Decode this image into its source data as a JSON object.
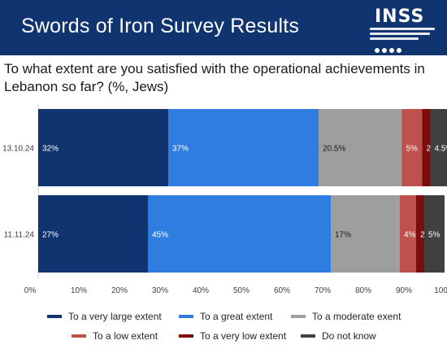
{
  "header": {
    "title": "Swords of Iron Survey Results",
    "logo_text": "INSS"
  },
  "question": "To what extent are you satisfied with the operational achievements in Lebanon so far? (%, Jews)",
  "chart_data": {
    "type": "bar",
    "orientation": "horizontal",
    "stacked": true,
    "categories": [
      "13.10.24",
      "11.11.24"
    ],
    "series": [
      {
        "name": "To a very large extent",
        "color": "#0f3470",
        "values": [
          32,
          27
        ],
        "labels": [
          "32%",
          "27%"
        ]
      },
      {
        "name": "To a great extent",
        "color": "#2f7de1",
        "values": [
          37,
          45
        ],
        "labels": [
          "37%",
          "45%"
        ]
      },
      {
        "name": "To a moderate exent",
        "color": "#9e9e9e",
        "values": [
          20.5,
          17
        ],
        "labels": [
          "20.5%",
          "17%"
        ]
      },
      {
        "name": "To a low extent",
        "color": "#c0504d",
        "values": [
          5,
          4
        ],
        "labels": [
          "5%",
          "4%"
        ]
      },
      {
        "name": "To a very low extent",
        "color": "#7b0d0d",
        "values": [
          2,
          2
        ],
        "labels": [
          "2%",
          "2%"
        ]
      },
      {
        "name": "Do not know",
        "color": "#404040",
        "values": [
          4.5,
          5
        ],
        "labels": [
          "4.5%",
          "5%"
        ]
      }
    ],
    "xlim": [
      0,
      100
    ],
    "xticks": [
      "0%",
      "10%",
      "20%",
      "30%",
      "40%",
      "50%",
      "60%",
      "70%",
      "80%",
      "90%",
      "100%"
    ],
    "legend_position": "bottom",
    "grid": false
  }
}
